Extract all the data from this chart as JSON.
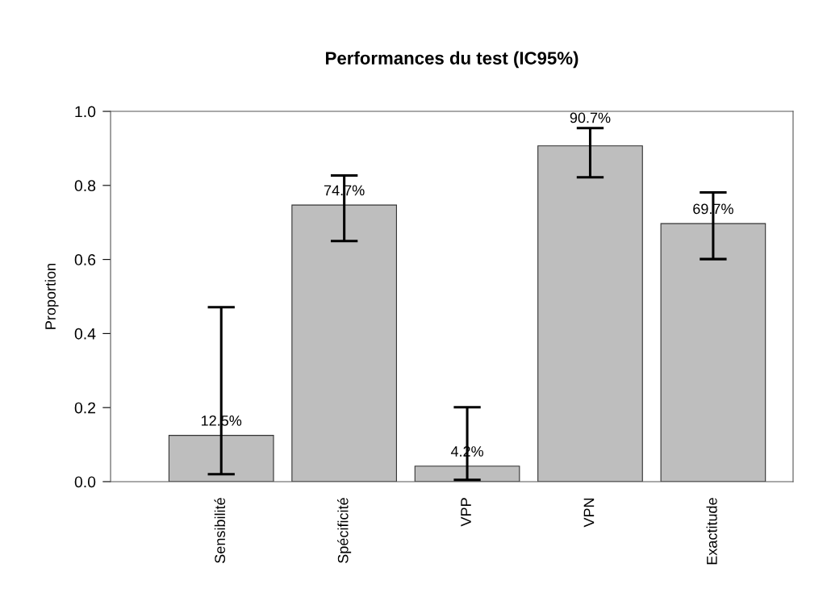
{
  "chart_data": {
    "type": "bar",
    "title": "Performances du test (IC95%)",
    "ylabel": "Proportion",
    "categories": [
      "Sensibilité",
      "Spécificité",
      "VPP",
      "VPN",
      "Exactitude"
    ],
    "values": [
      0.125,
      0.747,
      0.042,
      0.907,
      0.697
    ],
    "errors": [
      [
        0.02,
        0.471
      ],
      [
        0.65,
        0.827
      ],
      [
        0.005,
        0.201
      ],
      [
        0.822,
        0.955
      ],
      [
        0.601,
        0.781
      ]
    ],
    "value_labels": [
      "12.5%",
      "74.7%",
      "4.2%",
      "90.7%",
      "69.7%"
    ],
    "color": "#bebebe",
    "ylim": [
      0,
      1.0
    ],
    "yticks": [
      {
        "value": 0,
        "label": "0.0"
      },
      0.2,
      0.4,
      0.6,
      0.8,
      {
        "value": 1.0,
        "label": "1.0"
      }
    ],
    "grid": false,
    "legend": false
  }
}
